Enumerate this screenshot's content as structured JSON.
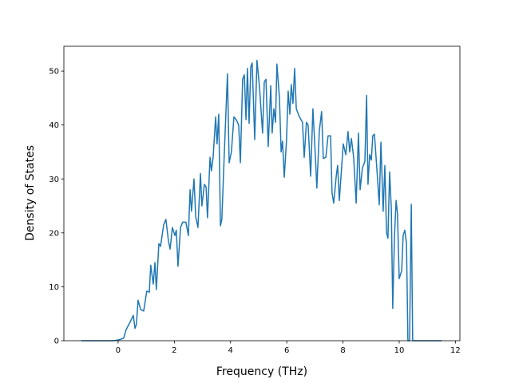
{
  "chart_data": {
    "type": "line",
    "xlabel": "Frequency (THz)",
    "ylabel": "Density of States",
    "x": [
      -1.31,
      -0.23,
      -0.09,
      0.06,
      0.2,
      0.28,
      0.43,
      0.54,
      0.6,
      0.65,
      0.71,
      0.8,
      0.91,
      1.02,
      1.11,
      1.16,
      1.25,
      1.31,
      1.36,
      1.45,
      1.51,
      1.62,
      1.7,
      1.79,
      1.85,
      1.93,
      2.02,
      2.07,
      2.13,
      2.22,
      2.3,
      2.41,
      2.5,
      2.56,
      2.61,
      2.7,
      2.76,
      2.84,
      2.93,
      2.98,
      3.07,
      3.13,
      3.18,
      3.27,
      3.32,
      3.38,
      3.47,
      3.52,
      3.58,
      3.64,
      3.69,
      3.78,
      3.89,
      3.95,
      4.03,
      4.12,
      4.2,
      4.29,
      4.35,
      4.43,
      4.49,
      4.55,
      4.6,
      4.66,
      4.72,
      4.77,
      4.86,
      4.94,
      5.03,
      5.14,
      5.2,
      5.26,
      5.34,
      5.43,
      5.48,
      5.54,
      5.6,
      5.65,
      5.74,
      5.8,
      5.85,
      5.91,
      5.99,
      6.05,
      6.11,
      6.16,
      6.22,
      6.28,
      6.34,
      6.45,
      6.56,
      6.62,
      6.7,
      6.76,
      6.85,
      6.93,
      7.02,
      7.07,
      7.16,
      7.24,
      7.3,
      7.39,
      7.47,
      7.56,
      7.61,
      7.67,
      7.76,
      7.81,
      7.87,
      7.95,
      8.01,
      8.1,
      8.18,
      8.24,
      8.3,
      8.38,
      8.47,
      8.55,
      8.61,
      8.69,
      8.78,
      8.84,
      8.89,
      8.95,
      9.01,
      9.06,
      9.12,
      9.23,
      9.29,
      9.35,
      9.43,
      9.49,
      9.55,
      9.6,
      9.66,
      9.72,
      9.77,
      9.83,
      9.89,
      9.94,
      10.0,
      10.09,
      10.14,
      10.2,
      10.26,
      10.31,
      10.37,
      10.43,
      10.48,
      11.51
    ],
    "series": [
      {
        "color": "#1f77b4",
        "values": [
          0,
          0,
          0.05,
          0.2,
          0.5,
          2,
          3.5,
          4.7,
          2.3,
          3,
          7.5,
          5.8,
          5.5,
          9.2,
          9,
          14,
          10.5,
          14.5,
          9.5,
          18,
          17.5,
          21.5,
          22.5,
          18.5,
          17,
          21,
          19.5,
          20.5,
          13.8,
          21,
          22,
          22,
          19.5,
          28,
          24,
          30,
          23,
          21,
          31,
          25,
          29,
          28.5,
          22.8,
          34,
          31.5,
          34,
          41.5,
          36.5,
          42,
          21.3,
          22.5,
          35,
          49.5,
          33,
          35,
          41.5,
          41,
          40,
          33,
          48.5,
          49.3,
          41,
          50.5,
          40.3,
          50.8,
          51.5,
          37.3,
          52,
          47,
          38.5,
          48,
          48.5,
          36,
          47.3,
          38.5,
          43,
          40.5,
          51.3,
          45,
          35,
          37,
          30.3,
          37,
          46.3,
          42,
          47.5,
          44,
          50.5,
          43,
          41.5,
          40.5,
          34,
          40.5,
          40,
          30.5,
          43,
          34,
          28.3,
          39,
          42.5,
          33.8,
          34,
          38,
          38,
          27.5,
          25.5,
          30.5,
          32.5,
          26,
          32,
          36.5,
          34.5,
          38.8,
          35,
          37.5,
          34,
          25.5,
          38.5,
          28,
          32,
          33.3,
          45.5,
          29,
          34.5,
          33.5,
          38,
          38.3,
          30,
          25.2,
          36.8,
          24,
          32.5,
          20,
          19,
          31.3,
          24.5,
          6,
          19,
          26,
          23.5,
          11.5,
          13,
          19.5,
          20.5,
          18,
          0,
          0,
          25.3,
          0,
          0
        ]
      }
    ],
    "xlim": [
      -1.93,
      12.16
    ],
    "ylim": [
      0,
      54.6
    ],
    "xticks": [
      0,
      2,
      4,
      6,
      8,
      10,
      12
    ],
    "yticks": [
      0,
      10,
      20,
      30,
      40,
      50
    ]
  }
}
